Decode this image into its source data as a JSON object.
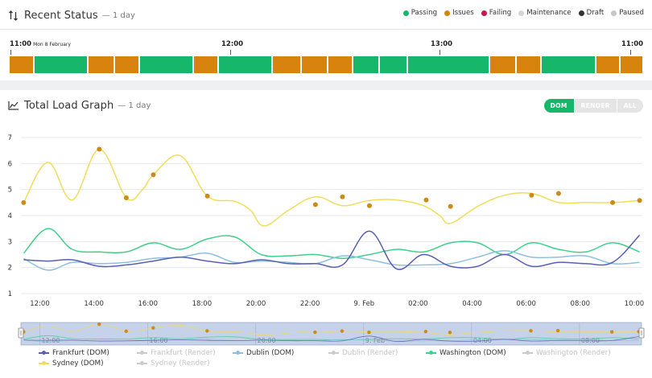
{
  "recent_status": {
    "title": "Recent Status",
    "subtitle": "— 1 day",
    "legend": [
      {
        "label": "Passing",
        "color": "#17b76b"
      },
      {
        "label": "Issues",
        "color": "#d9830f"
      },
      {
        "label": "Failing",
        "color": "#c8154e"
      },
      {
        "label": "Maintenance",
        "color": "#d5d5d5"
      },
      {
        "label": "Draft",
        "color": "#333333"
      },
      {
        "label": "Paused",
        "color": "#c6c6c6"
      }
    ],
    "time_labels": [
      {
        "time": "11:00",
        "date": "Mon 8 February"
      },
      {
        "time": "12:00",
        "date": ""
      },
      {
        "time": "13:00",
        "date": ""
      },
      {
        "time": "11:00",
        "date": ""
      }
    ],
    "segments": [
      {
        "status": "issues",
        "weight": 28
      },
      {
        "status": "passing",
        "weight": 64
      },
      {
        "status": "issues",
        "weight": 30
      },
      {
        "status": "issues",
        "weight": 28
      },
      {
        "status": "passing",
        "weight": 64
      },
      {
        "status": "issues",
        "weight": 28
      },
      {
        "status": "passing",
        "weight": 64
      },
      {
        "status": "issues",
        "weight": 33
      },
      {
        "status": "issues",
        "weight": 30
      },
      {
        "status": "issues",
        "weight": 28
      },
      {
        "status": "passing",
        "weight": 31
      },
      {
        "status": "passing",
        "weight": 32
      },
      {
        "status": "passing",
        "weight": 97
      },
      {
        "status": "issues",
        "weight": 31
      },
      {
        "status": "issues",
        "weight": 28
      },
      {
        "status": "passing",
        "weight": 64
      },
      {
        "status": "issues",
        "weight": 28
      },
      {
        "status": "issues",
        "weight": 26
      }
    ],
    "colors": {
      "passing": "#17b76b",
      "issues": "#d9830f",
      "failing": "#c8154e",
      "maintenance": "#d5d5d5",
      "draft": "#333333",
      "paused": "#c6c6c6"
    }
  },
  "load_graph": {
    "title": "Total Load Graph",
    "subtitle": "— 1 day",
    "toggles": [
      {
        "label": "DOM",
        "active": true
      },
      {
        "label": "RENDER",
        "active": false
      },
      {
        "label": "ALL",
        "active": false
      }
    ],
    "legend_rows": [
      [
        {
          "name": "Frankfurt (DOM)",
          "color": "#5a5fb3",
          "enabled": true
        },
        {
          "name": "Frankfurt (Render)",
          "color": "#cccccc",
          "enabled": false
        },
        {
          "name": "Dublin (DOM)",
          "color": "#8ebfe0",
          "enabled": true
        },
        {
          "name": "Dublin (Render)",
          "color": "#cccccc",
          "enabled": false
        },
        {
          "name": "Washington (DOM)",
          "color": "#3fd08a",
          "enabled": true
        },
        {
          "name": "Washington (Render)",
          "color": "#cccccc",
          "enabled": false
        }
      ],
      [
        {
          "name": "Sydney (DOM)",
          "color": "#f0dd5a",
          "enabled": true
        },
        {
          "name": "Sydney (Render)",
          "color": "#cccccc",
          "enabled": false
        }
      ]
    ]
  },
  "chart_data": {
    "type": "line",
    "ylim": [
      1,
      7
    ],
    "yticks": [
      1,
      2,
      3,
      4,
      5,
      6,
      7
    ],
    "xlim": [
      11.3,
      34.3
    ],
    "xticks": [
      {
        "x": 12,
        "label": "12:00"
      },
      {
        "x": 14,
        "label": "14:00"
      },
      {
        "x": 16,
        "label": "16:00"
      },
      {
        "x": 18,
        "label": "18:00"
      },
      {
        "x": 20,
        "label": "20:00"
      },
      {
        "x": 22,
        "label": "22:00"
      },
      {
        "x": 24,
        "label": "9. Feb"
      },
      {
        "x": 26,
        "label": "02:00"
      },
      {
        "x": 28,
        "label": "04:00"
      },
      {
        "x": 30,
        "label": "06:00"
      },
      {
        "x": 32,
        "label": "08:00"
      },
      {
        "x": 34,
        "label": "10:00"
      }
    ],
    "navigator_ticks": [
      {
        "x": 12,
        "label": "12:00"
      },
      {
        "x": 16,
        "label": "16:00"
      },
      {
        "x": 20,
        "label": "20:00"
      },
      {
        "x": 24,
        "label": "9. Feb"
      },
      {
        "x": 28,
        "label": "04:00"
      },
      {
        "x": 32,
        "label": "08:00"
      }
    ],
    "grid": true,
    "series": [
      {
        "name": "Sydney (DOM)",
        "color": "#f0dd5a",
        "marker_color": "#cc8a17",
        "points": [
          [
            11.4,
            4.5
          ],
          [
            12.3,
            6.05
          ],
          [
            13.2,
            4.6
          ],
          [
            14.2,
            6.55
          ],
          [
            15.2,
            4.68
          ],
          [
            15.8,
            5.0
          ],
          [
            16.2,
            5.57
          ],
          [
            17.2,
            6.3
          ],
          [
            18.2,
            4.75
          ],
          [
            19.2,
            4.55
          ],
          [
            19.8,
            4.2
          ],
          [
            20.3,
            3.6
          ],
          [
            21.2,
            4.2
          ],
          [
            22.2,
            4.72
          ],
          [
            23.2,
            4.38
          ],
          [
            24.2,
            4.58
          ],
          [
            25.2,
            4.6
          ],
          [
            26.2,
            4.38
          ],
          [
            26.8,
            4.0
          ],
          [
            27.2,
            3.7
          ],
          [
            28.2,
            4.35
          ],
          [
            29.2,
            4.78
          ],
          [
            30.2,
            4.85
          ],
          [
            31.2,
            4.5
          ],
          [
            32.2,
            4.5
          ],
          [
            33.2,
            4.5
          ],
          [
            34.2,
            4.58
          ]
        ],
        "markers": [
          [
            11.4,
            4.5
          ],
          [
            14.2,
            6.55
          ],
          [
            15.2,
            4.68
          ],
          [
            16.2,
            5.57
          ],
          [
            18.2,
            4.75
          ],
          [
            22.2,
            4.42
          ],
          [
            23.2,
            4.72
          ],
          [
            24.2,
            4.38
          ],
          [
            26.3,
            4.6
          ],
          [
            27.2,
            4.35
          ],
          [
            30.2,
            4.78
          ],
          [
            31.2,
            4.85
          ],
          [
            33.2,
            4.5
          ],
          [
            34.2,
            4.58
          ]
        ]
      },
      {
        "name": "Washington (DOM)",
        "color": "#3fd08a",
        "points": [
          [
            11.4,
            2.55
          ],
          [
            12.3,
            3.5
          ],
          [
            13.2,
            2.7
          ],
          [
            14.2,
            2.6
          ],
          [
            15.2,
            2.6
          ],
          [
            16.2,
            2.95
          ],
          [
            17.2,
            2.7
          ],
          [
            18.2,
            3.1
          ],
          [
            19.2,
            3.18
          ],
          [
            20.2,
            2.5
          ],
          [
            21.2,
            2.45
          ],
          [
            22.2,
            2.5
          ],
          [
            23.2,
            2.35
          ],
          [
            24.2,
            2.5
          ],
          [
            25.2,
            2.7
          ],
          [
            26.2,
            2.6
          ],
          [
            27.2,
            2.95
          ],
          [
            28.2,
            2.95
          ],
          [
            29.2,
            2.5
          ],
          [
            30.2,
            2.95
          ],
          [
            31.2,
            2.7
          ],
          [
            32.2,
            2.6
          ],
          [
            33.2,
            2.95
          ],
          [
            34.2,
            2.6
          ]
        ]
      },
      {
        "name": "Dublin (DOM)",
        "color": "#8ebfe0",
        "points": [
          [
            11.4,
            2.35
          ],
          [
            12.3,
            1.9
          ],
          [
            13.2,
            2.2
          ],
          [
            14.2,
            2.15
          ],
          [
            15.2,
            2.2
          ],
          [
            16.2,
            2.35
          ],
          [
            17.2,
            2.4
          ],
          [
            18.2,
            2.55
          ],
          [
            19.2,
            2.2
          ],
          [
            20.2,
            2.25
          ],
          [
            21.2,
            2.2
          ],
          [
            22.2,
            2.15
          ],
          [
            23.2,
            2.45
          ],
          [
            24.2,
            2.3
          ],
          [
            25.2,
            2.1
          ],
          [
            26.2,
            2.1
          ],
          [
            27.2,
            2.15
          ],
          [
            28.2,
            2.4
          ],
          [
            29.2,
            2.65
          ],
          [
            30.2,
            2.4
          ],
          [
            31.2,
            2.4
          ],
          [
            32.2,
            2.45
          ],
          [
            33.2,
            2.15
          ],
          [
            34.2,
            2.2
          ]
        ]
      },
      {
        "name": "Frankfurt (DOM)",
        "color": "#5a5fb3",
        "points": [
          [
            11.4,
            2.3
          ],
          [
            12.3,
            2.25
          ],
          [
            13.2,
            2.3
          ],
          [
            14.2,
            2.05
          ],
          [
            15.2,
            2.1
          ],
          [
            16.2,
            2.25
          ],
          [
            17.2,
            2.4
          ],
          [
            18.2,
            2.25
          ],
          [
            19.2,
            2.15
          ],
          [
            20.2,
            2.3
          ],
          [
            21.2,
            2.15
          ],
          [
            22.2,
            2.15
          ],
          [
            23.2,
            2.1
          ],
          [
            24.2,
            3.4
          ],
          [
            25.2,
            1.95
          ],
          [
            26.2,
            2.5
          ],
          [
            27.2,
            2.05
          ],
          [
            28.2,
            2.05
          ],
          [
            29.2,
            2.5
          ],
          [
            30.2,
            2.05
          ],
          [
            31.2,
            2.2
          ],
          [
            32.2,
            2.15
          ],
          [
            33.2,
            2.2
          ],
          [
            34.2,
            3.25
          ]
        ]
      }
    ]
  }
}
